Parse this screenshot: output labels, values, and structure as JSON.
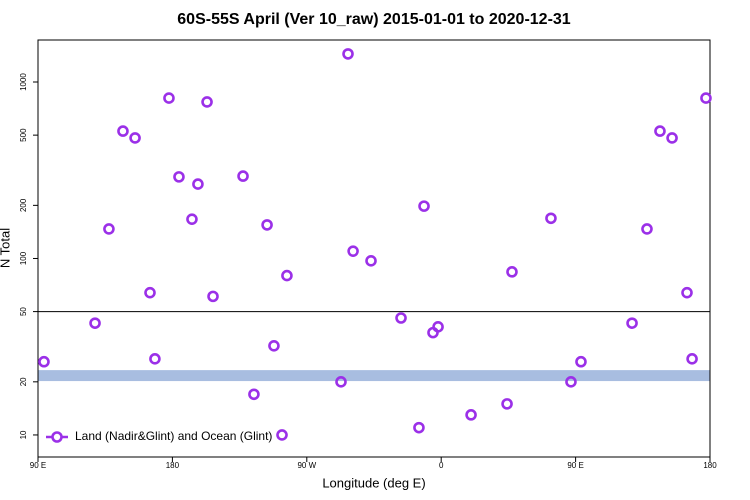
{
  "chart_data": {
    "type": "scatter",
    "title": "60S-55S April (Ver 10_raw)   2015-01-01 to 2020-12-31",
    "x_label": "Longitude (deg E)",
    "y_label": "N Total",
    "x": [
      94.0,
      128.2,
      137.5,
      146.9,
      155.0,
      165.0,
      168.3,
      177.7,
      184.4,
      193.1,
      197.1,
      203.2,
      207.2,
      227.3,
      234.6,
      243.4,
      248.0,
      253.4,
      256.7,
      292.9,
      297.6,
      301.0,
      313.0,
      333.1,
      345.1,
      348.5,
      354.5,
      357.9,
      380.0,
      404.1,
      407.4,
      433.5,
      446.9,
      453.6,
      487.8,
      497.8,
      506.5,
      514.6,
      524.6,
      528.0,
      537.3
    ],
    "series": [
      {
        "name": "Land (Nadir&Glint) and Ocean (Glint)",
        "color": "#9b30e8",
        "values": [
          26,
          43,
          147,
          527,
          482,
          64,
          27,
          811,
          290,
          167,
          264,
          771,
          61,
          293,
          17,
          155,
          32,
          10,
          80,
          20,
          1443,
          110,
          97,
          46,
          11,
          198,
          38,
          41,
          13,
          15,
          84,
          169,
          20,
          26,
          43,
          147,
          527,
          482,
          64,
          27,
          811
        ]
      }
    ],
    "xlim": [
      90,
      540
    ],
    "xticks": [
      {
        "value": 90,
        "label": "90 E"
      },
      {
        "value": 180,
        "label": "180"
      },
      {
        "value": 270,
        "label": "90 W"
      },
      {
        "value": 360,
        "label": "0"
      },
      {
        "value": 450,
        "label": "90 E"
      },
      {
        "value": 540,
        "label": "180"
      }
    ],
    "ylim": [
      7.5,
      1730
    ],
    "y_scale": "log",
    "yticks": [
      10,
      20,
      50,
      100,
      200,
      500,
      1000
    ],
    "reference_line": 50,
    "band": [
      20.2,
      23.3
    ],
    "band_color": "#a8bde0",
    "legend": "bottom-left"
  }
}
